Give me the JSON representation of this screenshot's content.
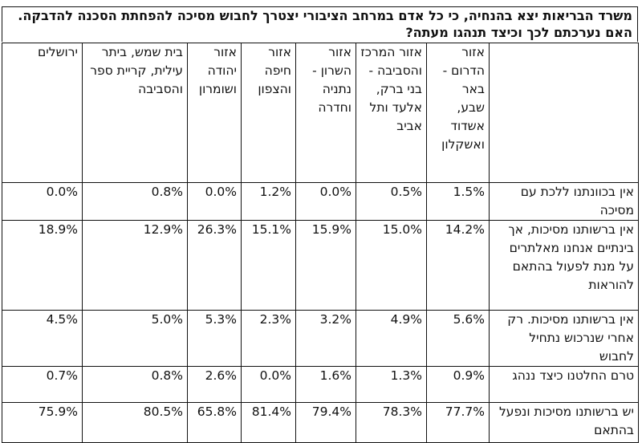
{
  "question": "משרד הבריאות יצא בהנחיה, כי כל אדם במרחב הציבורי יצטרך לחבוש מסיכה להפחתת הסכנה להדבקה. האם נערכתם לכך וכיצד תנהגו מעתה?",
  "columns": [
    "",
    "אזור הדרום - באר שבע, אשדוד ואשקלון",
    "אזור המרכז והסביבה - בני ברק, אלעד ותל אביב",
    "אזור השרון - נתניה וחדרה",
    "אזור חיפה והצפון",
    "אזור יהודה ושומרון",
    "בית שמש, ביתר עילית, קריית ספר והסביבה",
    "ירושלים"
  ],
  "rows": [
    {
      "label": "אין בכוונתנו ללכת עם מסיכה",
      "values": [
        "1.5%",
        "0.5%",
        "0.0%",
        "1.2%",
        "0.0%",
        "0.8%",
        "0.0%"
      ]
    },
    {
      "label": "אין ברשותנו מסיכות, אך בינתיים אנחנו מאלתרים על מנת לפעול בהתאם להוראות",
      "values": [
        "14.2%",
        "15.0%",
        "15.9%",
        "15.1%",
        "26.3%",
        "12.9%",
        "18.9%"
      ]
    },
    {
      "label": "אין ברשותנו מסיכות. רק אחרי שנרכוש נתחיל לחבוש",
      "values": [
        "5.6%",
        "4.9%",
        "3.2%",
        "2.3%",
        "5.3%",
        "5.0%",
        "4.5%"
      ]
    },
    {
      "label": "טרם החלטנו כיצד ננהג",
      "values": [
        "0.9%",
        "1.3%",
        "1.6%",
        "0.0%",
        "2.6%",
        "0.8%",
        "0.7%"
      ]
    },
    {
      "label": "יש ברשותנו מסיכות ונפעל בהתאם",
      "values": [
        "77.7%",
        "78.3%",
        "79.4%",
        "81.4%",
        "65.8%",
        "80.5%",
        "75.9%"
      ]
    }
  ]
}
